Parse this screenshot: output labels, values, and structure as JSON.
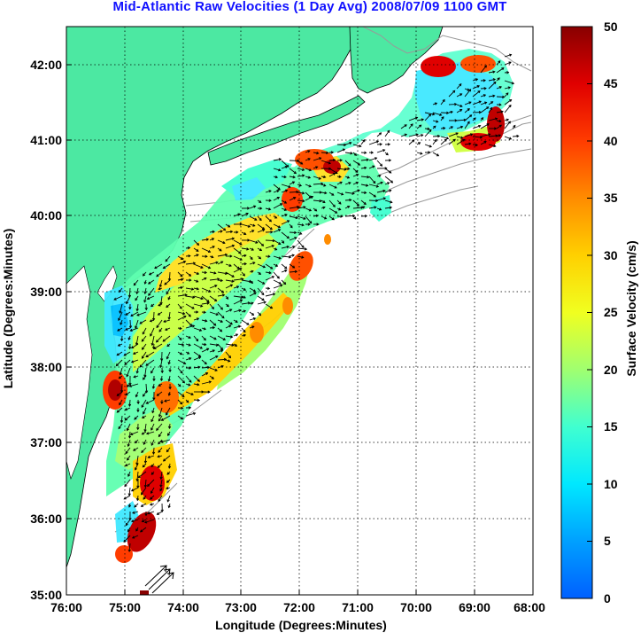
{
  "title": "Mid-Atlantic Raw Velocities (1 Day Avg) 2008/07/09 1100 GMT",
  "xaxis": {
    "label": "Longitude (Degrees:Minutes)",
    "ticks": [
      "76:00",
      "75:00",
      "74:00",
      "73:00",
      "72:00",
      "71:00",
      "70:00",
      "69:00",
      "68:00"
    ]
  },
  "yaxis": {
    "label": "Latitude (Degrees:Minutes)",
    "ticks": [
      "35:00",
      "36:00",
      "37:00",
      "38:00",
      "39:00",
      "40:00",
      "41:00",
      "42:00"
    ]
  },
  "colorbar": {
    "label": "Surface Velocity (cm/s)",
    "ticks": [
      "0",
      "5",
      "10",
      "15",
      "20",
      "25",
      "30",
      "35",
      "40",
      "45",
      "50"
    ],
    "min": 0,
    "max": 50
  },
  "colors": {
    "land": "#4ce8a2",
    "title": "#1010ff",
    "grid": "#000000",
    "contour": "#999999"
  }
}
